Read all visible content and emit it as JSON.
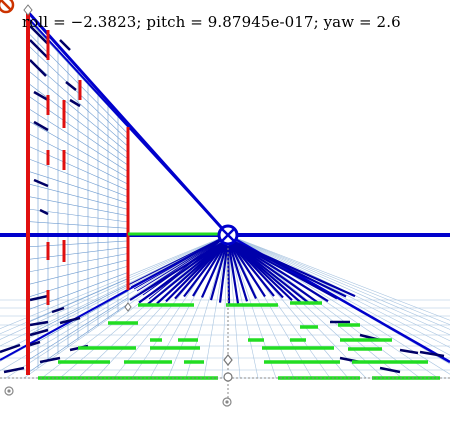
{
  "camera_readout": {
    "text": "roll = −2.3823; pitch = 9.87945e-017; yaw = 2.6",
    "roll": -2.3823,
    "pitch": 9.87945e-17,
    "yaw": 2.6
  },
  "colors": {
    "background": "#ffffff",
    "horizon": "#0000cc",
    "perspective_lines": "#0000cc",
    "vertical_markers": "#e01010",
    "floor_markers": "#22dd22",
    "grid": "#7fa0d0",
    "handle": "#888888",
    "no_symbol": "#cc3300"
  },
  "icons": {
    "vanishing_point": "vanishing-point-crosshair-icon",
    "corner": "no-symbol-icon",
    "handles": "circle-handle-icon"
  }
}
